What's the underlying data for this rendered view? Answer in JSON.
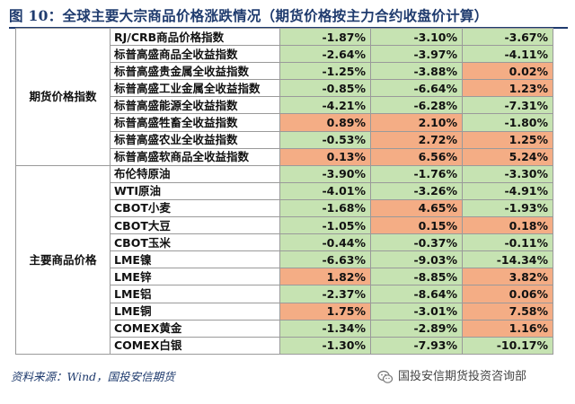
{
  "title": "图 10：全球主要大宗商品价格涨跌情况（期货价格按主力合约收盘价计算）",
  "source": "资料来源：Wind，国投安信期货",
  "brand": "国投安信期货投资咨询部",
  "icons": {
    "brand": "wechat-icon"
  },
  "colors": {
    "positive_fill": "#f4ad85",
    "negative_fill": "#c6e3b2",
    "title": "#1f3b6e",
    "border": "#9a9a9a"
  },
  "table": {
    "groups": [
      {
        "label": "期货价格指数",
        "rows": [
          {
            "name": "RJ/CRB商品价格指数",
            "v1": "-1.87%",
            "v2": "-3.10%",
            "v3": "-3.67%"
          },
          {
            "name": "标普高盛商品全收益指数",
            "v1": "-2.64%",
            "v2": "-3.97%",
            "v3": "-4.11%"
          },
          {
            "name": "标普高盛贵金属全收益指数",
            "v1": "-1.25%",
            "v2": "-3.88%",
            "v3": "0.02%"
          },
          {
            "name": "标普高盛工业金属全收益指数",
            "v1": "-0.85%",
            "v2": "-6.64%",
            "v3": "1.23%"
          },
          {
            "name": "标普高盛能源全收益指数",
            "v1": "-4.21%",
            "v2": "-6.28%",
            "v3": "-7.31%"
          },
          {
            "name": "标普高盛牲畜全收益指数",
            "v1": "0.89%",
            "v2": "2.10%",
            "v3": "-1.80%"
          },
          {
            "name": "标普高盛农业全收益指数",
            "v1": "-0.53%",
            "v2": "2.72%",
            "v3": "1.25%"
          },
          {
            "name": "标普高盛软商品全收益指数",
            "v1": "0.13%",
            "v2": "6.56%",
            "v3": "5.24%"
          }
        ]
      },
      {
        "label": "主要商品价格",
        "rows": [
          {
            "name": "布伦特原油",
            "v1": "-3.90%",
            "v2": "-1.76%",
            "v3": "-3.30%"
          },
          {
            "name": "WTI原油",
            "v1": "-4.01%",
            "v2": "-3.26%",
            "v3": "-4.91%"
          },
          {
            "name": "CBOT小麦",
            "v1": "-1.68%",
            "v2": "4.65%",
            "v3": "-1.93%"
          },
          {
            "name": "CBOT大豆",
            "v1": "-1.05%",
            "v2": "0.15%",
            "v3": "0.18%"
          },
          {
            "name": "CBOT玉米",
            "v1": "-0.44%",
            "v2": "-0.37%",
            "v3": "-0.11%"
          },
          {
            "name": "LME镍",
            "v1": "-6.63%",
            "v2": "-9.03%",
            "v3": "-14.34%"
          },
          {
            "name": "LME锌",
            "v1": "1.82%",
            "v2": "-8.85%",
            "v3": "3.82%"
          },
          {
            "name": "LME铝",
            "v1": "-2.37%",
            "v2": "-8.64%",
            "v3": "0.06%"
          },
          {
            "name": "LME铜",
            "v1": "1.75%",
            "v2": "-3.01%",
            "v3": "7.58%"
          },
          {
            "name": "COMEX黄金",
            "v1": "-1.34%",
            "v2": "-2.89%",
            "v3": "1.16%"
          },
          {
            "name": "COMEX白银",
            "v1": "-1.30%",
            "v2": "-7.93%",
            "v3": "-10.17%"
          }
        ]
      }
    ]
  }
}
